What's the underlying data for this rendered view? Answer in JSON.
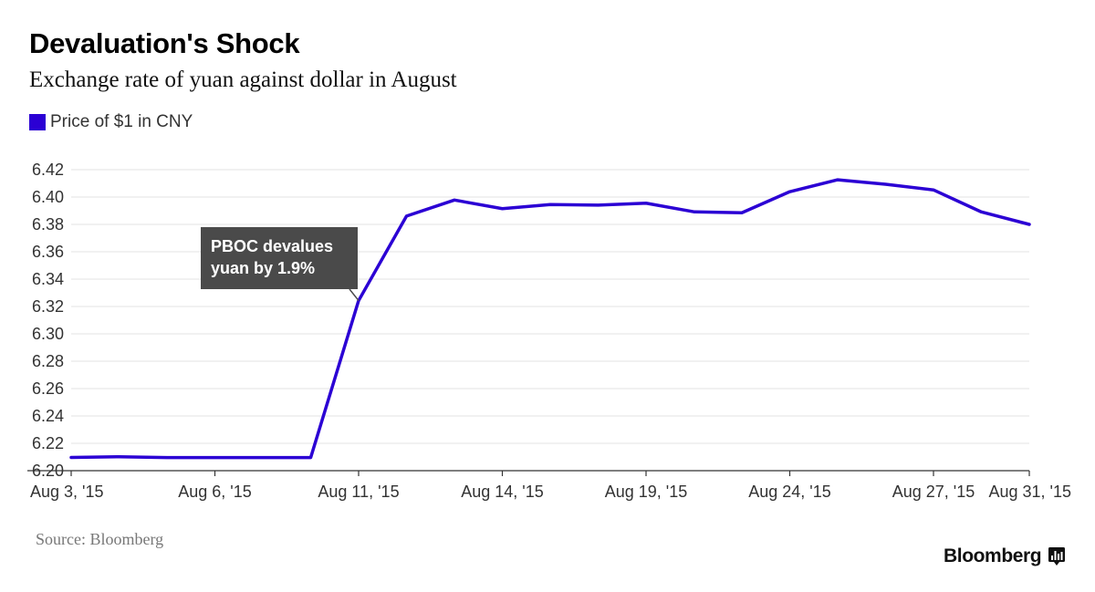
{
  "header": {
    "title": "Devaluation's Shock",
    "subtitle": "Exchange rate of yuan against dollar in August"
  },
  "legend": {
    "label": "Price of $1 in CNY",
    "color": "#2b00d4"
  },
  "annotation": {
    "line1": "PBOC devalues",
    "line2": "yuan by 1.9%",
    "background": "#4a4a4a"
  },
  "footer": {
    "source": "Source: Bloomberg",
    "brand": "Bloomberg",
    "brand_icon": "bloomberg-chart-icon"
  },
  "chart_data": {
    "type": "line",
    "title": "Devaluation's Shock",
    "subtitle": "Exchange rate of yuan against dollar in August",
    "xlabel": "",
    "ylabel": "",
    "x_tick_labels": [
      "Aug 3, '15",
      "Aug 6, '15",
      "Aug 11, '15",
      "Aug 14, '15",
      "Aug 19, '15",
      "Aug 24, '15",
      "Aug 27, '15",
      "Aug 31, '15"
    ],
    "y_ticks": [
      6.2,
      6.22,
      6.24,
      6.26,
      6.28,
      6.3,
      6.32,
      6.34,
      6.36,
      6.38,
      6.4,
      6.42
    ],
    "ylim": [
      6.2,
      6.42
    ],
    "grid": true,
    "legend_position": "top-left",
    "series": [
      {
        "name": "Price of $1 in CNY",
        "color": "#2b00d4",
        "x": [
          "Aug 3, '15",
          "Aug 4, '15",
          "Aug 5, '15",
          "Aug 6, '15",
          "Aug 7, '15",
          "Aug 10, '15",
          "Aug 11, '15",
          "Aug 12, '15",
          "Aug 13, '15",
          "Aug 14, '15",
          "Aug 17, '15",
          "Aug 18, '15",
          "Aug 19, '15",
          "Aug 20, '15",
          "Aug 21, '15",
          "Aug 24, '15",
          "Aug 25, '15",
          "Aug 26, '15",
          "Aug 27, '15",
          "Aug 28, '15",
          "Aug 31, '15"
        ],
        "values": [
          6.2097,
          6.2102,
          6.2096,
          6.2096,
          6.2096,
          6.2096,
          6.3243,
          6.3861,
          6.3978,
          6.3915,
          6.3945,
          6.3941,
          6.3955,
          6.3892,
          6.3885,
          6.4039,
          6.4126,
          6.4093,
          6.4052,
          6.3891,
          6.38
        ]
      }
    ]
  }
}
